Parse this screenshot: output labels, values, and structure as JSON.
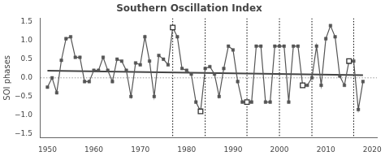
{
  "chart_data": {
    "type": "line",
    "title": "Southern Oscillation Index",
    "y_label": "SOI phases",
    "xlim": [
      1948.5,
      2021
    ],
    "ylim": [
      -1.6,
      1.6
    ],
    "xticks": [
      1950,
      1960,
      1970,
      1980,
      1990,
      2000,
      2010,
      2020
    ],
    "yticks": [
      {
        "value": -1.5,
        "label": "−1.5"
      },
      {
        "value": -1.0,
        "label": "−1.0"
      },
      {
        "value": -0.5,
        "label": "−0.5"
      },
      {
        "value": 0.0,
        "label": "0.0"
      },
      0.5,
      {
        "value": 1.0,
        "label": "1.0"
      },
      1.5
    ],
    "grid": false,
    "hlines": {
      "y": [
        0
      ],
      "color": "#999999",
      "line_style": "dotted"
    },
    "vlines": {
      "x": [
        1977,
        1984,
        1993,
        2000,
        2007,
        2016
      ],
      "color": "#000000",
      "line_style": "dotted"
    },
    "series": [
      {
        "type": "line",
        "color": "#444444",
        "marker": "none",
        "line_style": "solid",
        "x": [
          1950,
          2018
        ],
        "values": [
          0.19,
          0.07
        ]
      },
      {
        "type": "line",
        "color": "#555555",
        "marker": "square",
        "line_style": "solid",
        "x": [
          1950,
          1951,
          1952,
          1953,
          1954,
          1955,
          1956,
          1957,
          1958,
          1959,
          1960,
          1961,
          1962,
          1963,
          1964,
          1965,
          1966,
          1967,
          1968,
          1969,
          1970,
          1971,
          1972,
          1973,
          1974,
          1975,
          1976,
          1977,
          1978,
          1979,
          1980,
          1981,
          1982,
          1983,
          1984,
          1985,
          1986,
          1987,
          1988,
          1989,
          1990,
          1991,
          1992,
          1993,
          1994,
          1995,
          1996,
          1997,
          1998,
          1999,
          2000,
          2001,
          2002,
          2003,
          2004,
          2005,
          2006,
          2007,
          2008,
          2009,
          2010,
          2011,
          2012,
          2013,
          2014,
          2015,
          2016,
          2017,
          2018
        ],
        "values": [
          -0.25,
          0.0,
          -0.4,
          0.47,
          1.05,
          1.1,
          0.55,
          0.55,
          -0.1,
          -0.1,
          0.2,
          0.2,
          0.55,
          0.2,
          -0.1,
          0.5,
          0.45,
          0.2,
          -0.5,
          0.4,
          0.35,
          1.1,
          0.45,
          -0.5,
          0.6,
          0.5,
          0.35,
          1.35,
          1.1,
          0.25,
          0.2,
          0.1,
          -0.65,
          -0.9,
          0.25,
          0.3,
          0.1,
          -0.5,
          0.25,
          0.85,
          0.75,
          -0.1,
          -0.65,
          -0.65,
          -0.65,
          0.85,
          0.85,
          -0.65,
          -0.65,
          0.85,
          0.85,
          0.85,
          -0.65,
          0.85,
          0.85,
          -0.2,
          -0.2,
          0.0,
          0.85,
          -0.2,
          1.05,
          1.4,
          1.1,
          0.05,
          -0.2,
          0.45,
          0.45,
          -0.85,
          -0.1
        ]
      },
      {
        "type": "scatter",
        "color": "#333333",
        "marker": "open_square",
        "line_style": "none",
        "x": [
          1977,
          1983,
          1993,
          2005,
          2015
        ],
        "values": [
          1.35,
          -0.9,
          -0.65,
          -0.2,
          0.45
        ]
      }
    ]
  }
}
